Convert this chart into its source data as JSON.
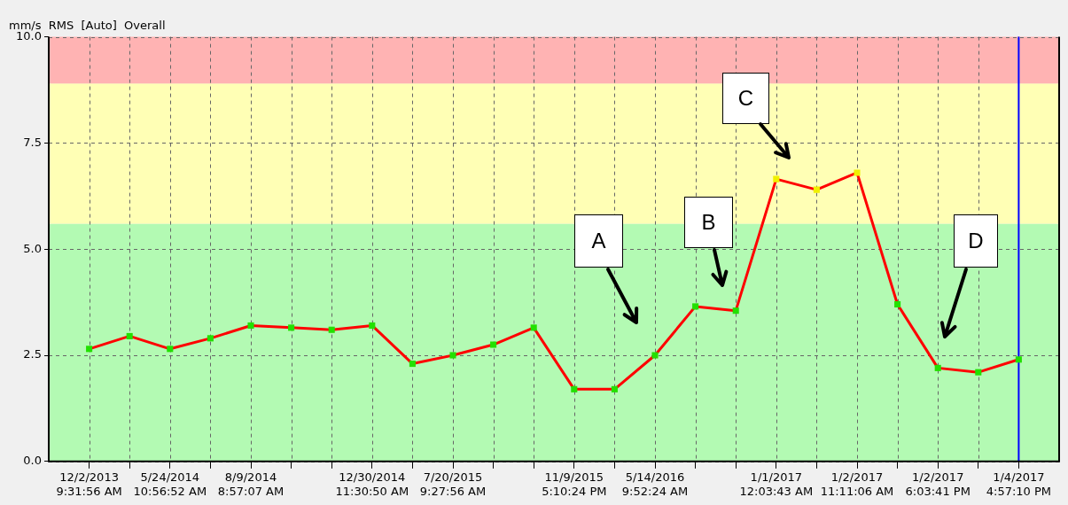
{
  "chart_data": {
    "type": "line",
    "title": "mm/s  RMS  [Auto]  Overall",
    "categories": [
      "12/2/2013\n9:31:56 AM",
      null,
      "5/24/2014\n10:56:52 AM",
      null,
      "8/9/2014\n8:57:07 AM",
      null,
      null,
      "12/30/2014\n11:30:50 AM",
      null,
      "7/20/2015\n9:27:56 AM",
      null,
      null,
      "11/9/2015\n5:10:24 PM",
      null,
      "5/14/2016\n9:52:24 AM",
      null,
      null,
      "1/1/2017\n12:03:43 AM",
      null,
      "1/2/2017\n11:11:06 AM",
      null,
      "1/2/2017\n6:03:41 PM",
      null,
      "1/4/2017\n4:57:10 PM"
    ],
    "series": [
      {
        "color": "#ff0000",
        "colors": [
          "#22e000",
          "#22e000",
          "#22e000",
          "#22e000",
          "#22e000",
          "#22e000",
          "#22e000",
          "#22e000",
          "#22e000",
          "#22e000",
          "#22e000",
          "#22e000",
          "#22e000",
          "#22e000",
          "#22e000",
          "#22e000",
          "#22e000",
          "#f0f000",
          "#f0f000",
          "#f0f000",
          "#22e000",
          "#22e000",
          "#22e000",
          "#22e000"
        ],
        "values": [
          2.65,
          2.95,
          2.65,
          2.9,
          3.2,
          3.15,
          3.1,
          3.2,
          2.3,
          2.5,
          2.75,
          3.15,
          1.7,
          1.7,
          2.5,
          3.65,
          3.55,
          6.65,
          6.4,
          6.8,
          3.7,
          2.2,
          2.1,
          2.4
        ]
      }
    ],
    "ylim": [
      0,
      10
    ],
    "yticks": [
      {
        "value": 0,
        "label": "0.0"
      },
      {
        "value": 2.5,
        "label": "2.5"
      },
      {
        "value": 5,
        "label": "5.0"
      },
      {
        "value": 7.5,
        "label": "7.5"
      },
      {
        "value": 10,
        "label": "10.0"
      }
    ],
    "bands": [
      {
        "axis": "y",
        "from": 0,
        "to": 5.6,
        "color": "#b3fab3"
      },
      {
        "axis": "y",
        "from": 5.6,
        "to": 8.9,
        "color": "#ffffb5"
      },
      {
        "axis": "y",
        "from": 8.9,
        "to": 10,
        "color": "#ffb3b3"
      }
    ],
    "ref_lines": [
      {
        "axis": "x",
        "value": "1/4/2017\n4:57:10 PM",
        "color": "#0000ff"
      }
    ],
    "grid": true,
    "line_style": "solid",
    "marker": "square",
    "legend": false,
    "annotations": [
      "A",
      "B",
      "C",
      "D"
    ]
  }
}
